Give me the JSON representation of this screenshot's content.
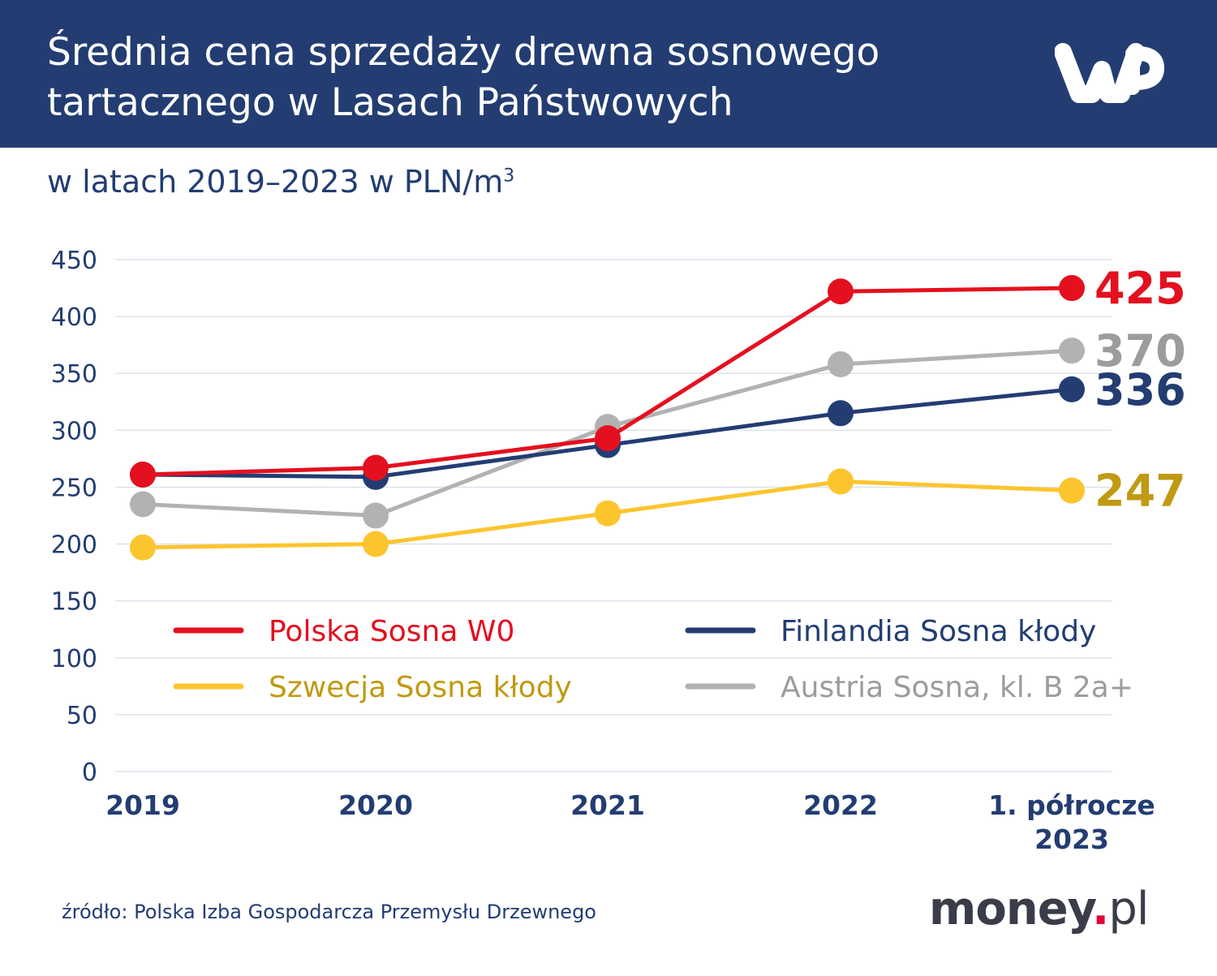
{
  "header": {
    "title_line1": "Średnia cena sprzedaży drewna sosnowego",
    "title_line2": "tartacznego w Lasach Państwowych",
    "logo": "wp-logo"
  },
  "subtitle": {
    "text": "w latach 2019–2023 w PLN/m",
    "sup": "3"
  },
  "colors": {
    "header_bg": "#233d72",
    "red": "#e4101f",
    "navy": "#233d72",
    "gray": "#b2b2b2",
    "yellow": "#fcc52e",
    "yellow_text": "#c09a12",
    "gray_text": "#9c9c9c",
    "grid": "#dde3ee"
  },
  "chart_data": {
    "type": "line",
    "categories": [
      "2019",
      "2020",
      "2021",
      "2022",
      [
        "1. półrocze",
        "2023"
      ]
    ],
    "ylim": [
      0,
      450
    ],
    "yticks": [
      0,
      50,
      100,
      150,
      200,
      250,
      300,
      350,
      400,
      450
    ],
    "grid": true,
    "legend_position": "inside-lower-center",
    "series": [
      {
        "name": "Austria Sosna, kl. B 2a+",
        "color": "#b2b2b2",
        "label_color": "#9c9c9c",
        "values": [
          235,
          225,
          303,
          358,
          370
        ],
        "end_label": "370"
      },
      {
        "name": "Szwecja Sosna kłody",
        "color": "#fcc52e",
        "label_color": "#c09a12",
        "values": [
          197,
          200,
          227,
          255,
          247
        ],
        "end_label": "247"
      },
      {
        "name": "Finlandia Sosna kłody",
        "color": "#233d72",
        "label_color": "#233d72",
        "values": [
          261,
          259,
          287,
          315,
          336
        ],
        "end_label": "336"
      },
      {
        "name": "Polska Sosna W0",
        "color": "#e4101f",
        "label_color": "#e4101f",
        "values": [
          261,
          267,
          293,
          422,
          425
        ],
        "end_label": "425"
      }
    ],
    "legend_order": [
      "Polska Sosna W0",
      "Finlandia Sosna kłody",
      "Szwecja Sosna kłody",
      "Austria Sosna, kl. B 2a+"
    ]
  },
  "footer": {
    "source": "źródło: Polska Izba Gospodarcza Przemysłu Drzewnego",
    "brand_main": "money",
    "brand_dot": ".",
    "brand_tld": "pl"
  }
}
